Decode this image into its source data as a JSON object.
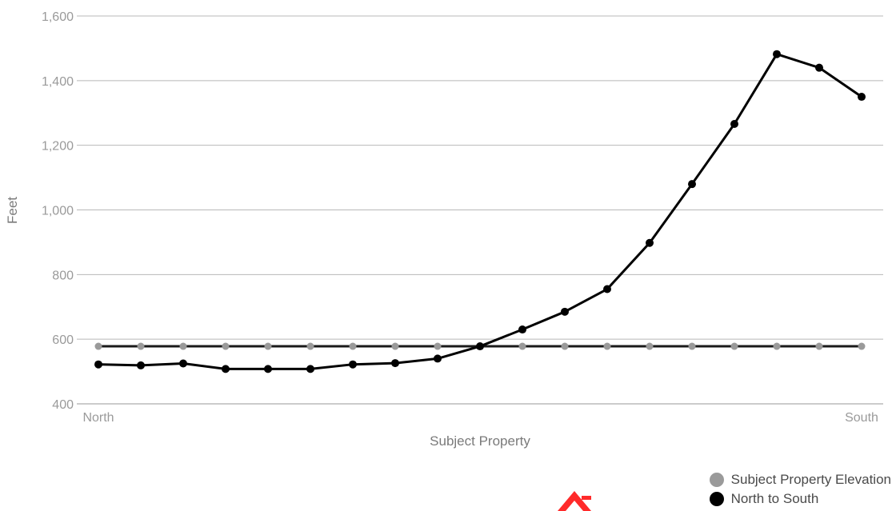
{
  "chart_data": {
    "type": "line",
    "x_labels": {
      "first": "North",
      "last": "South"
    },
    "xlabel": "Subject Property",
    "ylabel": "Feet",
    "ylim": [
      400,
      1600
    ],
    "yticks": [
      "400",
      "600",
      "800",
      "1,000",
      "1,200",
      "1,400",
      "1,600"
    ],
    "grid": true,
    "legend_placement": "bottom-right",
    "point_count": 19,
    "series": [
      {
        "name": "Subject Property Elevation",
        "color": "#9a9a9a",
        "line_color": "#1a1a1a",
        "values": [
          578,
          578,
          578,
          578,
          578,
          578,
          578,
          578,
          578,
          578,
          578,
          578,
          578,
          578,
          578,
          578,
          578,
          578,
          578
        ]
      },
      {
        "name": "North to South",
        "color": "#000000",
        "line_color": "#000000",
        "values": [
          522,
          519,
          525,
          508,
          508,
          508,
          522,
          526,
          540,
          578,
          630,
          685,
          755,
          898,
          1080,
          1266,
          1482,
          1440,
          1350
        ]
      }
    ]
  }
}
